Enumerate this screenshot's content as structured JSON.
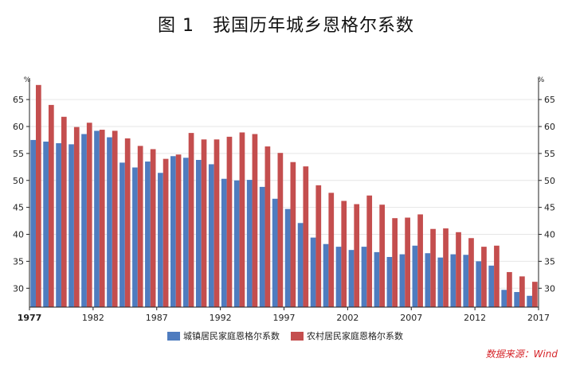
{
  "title": "图 1　我国历年城乡恩格尔系数",
  "source": "数据来源：Wind",
  "colors": {
    "urban": "#4f7cbf",
    "rural": "#c44e4e",
    "axis": "#222222",
    "grid": "#e6e6e6"
  },
  "chart_data": {
    "type": "bar",
    "ylabel_left": "%",
    "ylabel_right": "%",
    "ylim": [
      26.5,
      69
    ],
    "yticks": [
      30,
      35,
      40,
      45,
      50,
      55,
      60,
      65
    ],
    "x_tick_labels": [
      "1977",
      "1982",
      "1987",
      "1992",
      "1997",
      "2002",
      "2007",
      "2012",
      "2017"
    ],
    "categories": [
      1978,
      1979,
      1980,
      1981,
      1982,
      1983,
      1984,
      1985,
      1986,
      1987,
      1988,
      1989,
      1990,
      1991,
      1992,
      1993,
      1994,
      1995,
      1996,
      1997,
      1998,
      1999,
      2000,
      2001,
      2002,
      2003,
      2004,
      2005,
      2006,
      2007,
      2008,
      2009,
      2010,
      2011,
      2012,
      2013,
      2014,
      2015,
      2016,
      2017
    ],
    "series": [
      {
        "name": "城镇居民家庭恩格尔系数",
        "color": "#4f7cbf",
        "values": [
          57.5,
          57.2,
          56.9,
          56.7,
          58.6,
          59.2,
          58.0,
          53.3,
          52.4,
          53.5,
          51.4,
          54.5,
          54.2,
          53.8,
          53.0,
          50.3,
          50.0,
          50.1,
          48.8,
          46.6,
          44.7,
          42.1,
          39.4,
          38.2,
          37.7,
          37.1,
          37.7,
          36.7,
          35.8,
          36.3,
          37.9,
          36.5,
          35.7,
          36.3,
          36.2,
          35.0,
          34.2,
          29.7,
          29.3,
          28.6
        ]
      },
      {
        "name": "农村居民家庭恩格尔系数",
        "color": "#c44e4e",
        "values": [
          67.7,
          64.0,
          61.8,
          59.9,
          60.7,
          59.4,
          59.2,
          57.8,
          56.4,
          55.8,
          54.0,
          54.8,
          58.8,
          57.6,
          57.6,
          58.1,
          58.9,
          58.6,
          56.3,
          55.1,
          53.4,
          52.6,
          49.1,
          47.7,
          46.2,
          45.6,
          47.2,
          45.5,
          43.0,
          43.1,
          43.7,
          41.0,
          41.1,
          40.4,
          39.3,
          37.7,
          37.9,
          33.0,
          32.2,
          31.2
        ]
      }
    ]
  }
}
